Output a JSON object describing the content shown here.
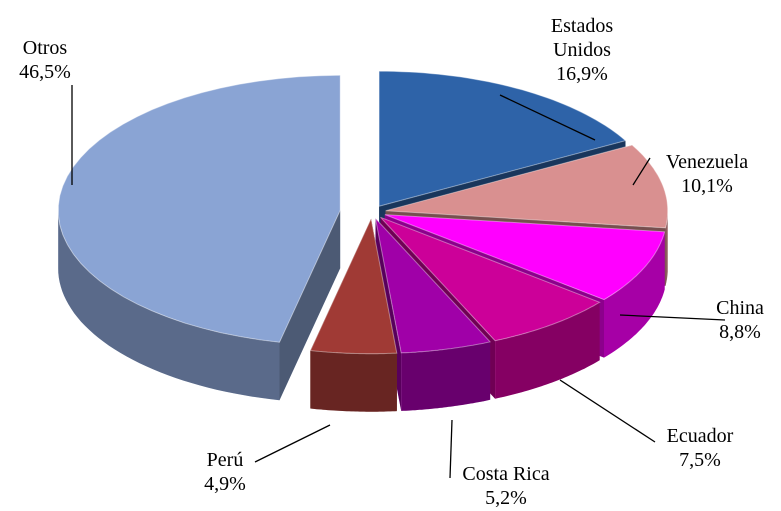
{
  "chart_data": {
    "type": "pie3d",
    "categories": [
      "Estados Unidos",
      "Venezuela",
      "China",
      "Ecuador",
      "Costa Rica",
      "Perú",
      "Otros"
    ],
    "values": [
      16.9,
      10.1,
      8.8,
      7.5,
      5.2,
      4.9,
      46.5
    ],
    "value_labels": [
      "16,9%",
      "10,1%",
      "8,8%",
      "7,5%",
      "5,2%",
      "4,9%",
      "46,5%"
    ],
    "colors": [
      "#2e63a8",
      "#d99090",
      "#ff00ff",
      "#cc0099",
      "#a000a8",
      "#a03a35",
      "#8aa4d4"
    ]
  }
}
